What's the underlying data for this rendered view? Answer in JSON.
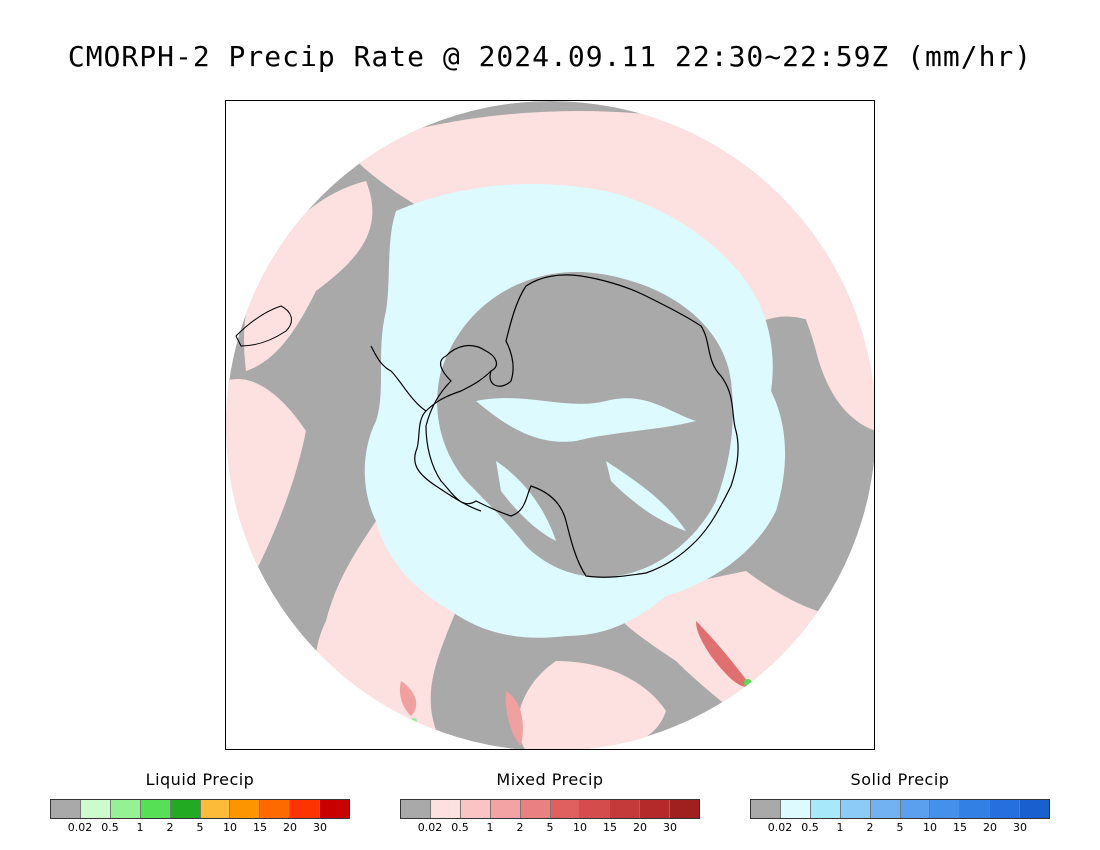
{
  "title": "CMORPH-2 Precip Rate @ 2024.09.11 22:30~22:59Z (mm/hr)",
  "map": {
    "projection": "south polar stereographic",
    "colors": {
      "no_precip": "#a9a9a9",
      "mixed_light": "#fde0e0",
      "mixed_medium": "#f1a0a0",
      "snow_light": "#ddfaff",
      "coastline": "#000000",
      "liquid_spot": "#55dd55"
    }
  },
  "legends": [
    {
      "id": "liquid",
      "title": "Liquid Precip",
      "colors": [
        "#a9a9a9",
        "#ccfccc",
        "#96f094",
        "#55e055",
        "#22aa22",
        "#fdbb3a",
        "#fd9500",
        "#fd6a00",
        "#fd3300",
        "#c80000"
      ],
      "ticks": [
        "0.02",
        "0.5",
        "1",
        "2",
        "5",
        "10",
        "15",
        "20",
        "30"
      ]
    },
    {
      "id": "mixed",
      "title": "Mixed Precip",
      "colors": [
        "#a9a9a9",
        "#fde0e0",
        "#fbc4c4",
        "#f3a3a3",
        "#ea8080",
        "#e06060",
        "#d44c4c",
        "#c43a3a",
        "#b42a2a",
        "#a01f1f"
      ],
      "ticks": [
        "0.02",
        "0.5",
        "1",
        "2",
        "5",
        "10",
        "15",
        "20",
        "30"
      ]
    },
    {
      "id": "solid",
      "title": "Solid Precip",
      "colors": [
        "#a9a9a9",
        "#ddfaff",
        "#a8e8fb",
        "#8ccbf7",
        "#72b2f2",
        "#5aa0ee",
        "#4590ea",
        "#3380e5",
        "#2570de",
        "#1a5fd0"
      ],
      "ticks": [
        "0.02",
        "0.5",
        "1",
        "2",
        "5",
        "10",
        "15",
        "20",
        "30"
      ]
    }
  ]
}
